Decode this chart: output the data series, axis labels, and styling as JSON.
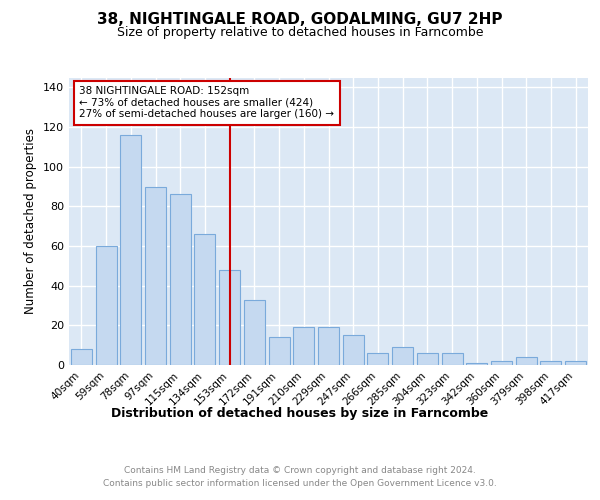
{
  "title": "38, NIGHTINGALE ROAD, GODALMING, GU7 2HP",
  "subtitle": "Size of property relative to detached houses in Farncombe",
  "xlabel": "Distribution of detached houses by size in Farncombe",
  "ylabel": "Number of detached properties",
  "categories": [
    "40sqm",
    "59sqm",
    "78sqm",
    "97sqm",
    "115sqm",
    "134sqm",
    "153sqm",
    "172sqm",
    "191sqm",
    "210sqm",
    "229sqm",
    "247sqm",
    "266sqm",
    "285sqm",
    "304sqm",
    "323sqm",
    "342sqm",
    "360sqm",
    "379sqm",
    "398sqm",
    "417sqm"
  ],
  "values": [
    8,
    60,
    116,
    90,
    86,
    66,
    48,
    33,
    14,
    19,
    19,
    15,
    6,
    9,
    6,
    6,
    1,
    2,
    4,
    2,
    2
  ],
  "bar_color": "#c5d9f0",
  "bar_edge_color": "#7aaadb",
  "vline_x_index": 6,
  "vline_color": "#cc0000",
  "annotation_line1": "38 NIGHTINGALE ROAD: 152sqm",
  "annotation_line2": "← 73% of detached houses are smaller (424)",
  "annotation_line3": "27% of semi-detached houses are larger (160) →",
  "annotation_box_color": "#cc0000",
  "ylim": [
    0,
    145
  ],
  "yticks": [
    0,
    20,
    40,
    60,
    80,
    100,
    120,
    140
  ],
  "background_color": "#dce8f5",
  "grid_color": "#ffffff",
  "footer_line1": "Contains HM Land Registry data © Crown copyright and database right 2024.",
  "footer_line2": "Contains public sector information licensed under the Open Government Licence v3.0."
}
